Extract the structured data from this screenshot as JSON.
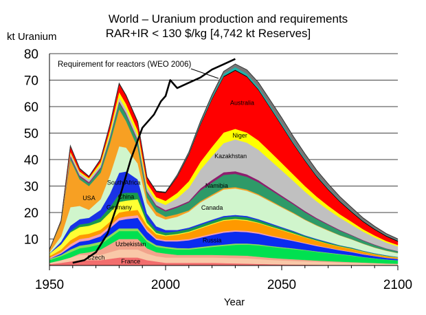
{
  "chart_data": {
    "type": "area",
    "stacked": true,
    "title": "World – Uranium production and requirements",
    "subtitle": "RAR+IR < 130 $/kg [4,742 kt Reserves]",
    "ylabel": "kt Uranium",
    "xlabel": "Year",
    "xlim": [
      1950,
      2100
    ],
    "ylim": [
      0,
      80
    ],
    "xticks": [
      "1950",
      "2000",
      "2050",
      "2100"
    ],
    "yticks": [
      "10",
      "20",
      "30",
      "40",
      "50",
      "60",
      "70",
      "80"
    ],
    "grid": "horizontal",
    "x": [
      1950,
      1955,
      1959,
      1963,
      1967,
      1972,
      1976,
      1980,
      1983,
      1988,
      1992,
      1996,
      2000,
      2005,
      2010,
      2015,
      2020,
      2025,
      2030,
      2035,
      2040,
      2045,
      2050,
      2055,
      2060,
      2065,
      2070,
      2075,
      2080,
      2085,
      2090,
      2095,
      2100
    ],
    "series": [
      {
        "name": "France",
        "color": "#f26d6d",
        "values": [
          0.5,
          1,
          1.5,
          2,
          2,
          2,
          2.5,
          3,
          3,
          3,
          2,
          1.5,
          1,
          1,
          1,
          1,
          1,
          0.9,
          0.8,
          0.7,
          0.6,
          0.5,
          0.4,
          0.35,
          0.3,
          0.25,
          0.2,
          0.15,
          0.12,
          0.1,
          0.08,
          0.06,
          0.05
        ]
      },
      {
        "name": "Czech",
        "color": "#f9c8a8",
        "values": [
          0.5,
          1,
          1.5,
          2,
          2,
          2,
          2.5,
          3,
          3,
          3,
          2.5,
          2,
          2,
          2,
          2,
          2,
          2,
          2,
          2,
          2,
          1.8,
          1.6,
          1.5,
          1.4,
          1.3,
          1.2,
          1.1,
          1,
          0.9,
          0.8,
          0.7,
          0.6,
          0.5
        ]
      },
      {
        "name": "Uzbekistan",
        "color": "#f2a48c",
        "values": [
          0,
          0,
          0,
          0.5,
          1,
          2,
          3,
          4,
          4,
          4,
          2,
          1.5,
          1.5,
          1,
          1,
          1,
          1,
          1,
          1,
          1,
          0.9,
          0.8,
          0.7,
          0.6,
          0.5,
          0.4,
          0.35,
          0.3,
          0.25,
          0.2,
          0.15,
          0.1,
          0.1
        ]
      },
      {
        "name": "",
        "color": "#00e050",
        "values": [
          1,
          1.5,
          2,
          2,
          2,
          2,
          2.5,
          3,
          3,
          3,
          2.5,
          2,
          2,
          2,
          2,
          2.5,
          3,
          3.5,
          4,
          4.2,
          4.3,
          4.2,
          4,
          3.8,
          3.6,
          3.3,
          3,
          2.7,
          2.4,
          2,
          1.7,
          1.4,
          1.2
        ]
      },
      {
        "name": "",
        "color": "#8fdc5a",
        "values": [
          0.5,
          0.5,
          1,
          1,
          1,
          1,
          1,
          1,
          1,
          1,
          0.8,
          0.7,
          0.6,
          0.6,
          0.5,
          0.5,
          0.5,
          0.5,
          0.5,
          0.4,
          0.4,
          0.3,
          0.3,
          0.3,
          0.2,
          0.2,
          0.2,
          0.2,
          0.2,
          0.1,
          0.1,
          0.1,
          0.1
        ]
      },
      {
        "name": "Russia",
        "color": "#0a2cf0",
        "values": [
          0,
          0.5,
          1,
          1.5,
          1.5,
          2,
          2.5,
          3,
          3.5,
          4,
          3,
          2,
          2,
          2.5,
          3,
          3.5,
          4,
          4.5,
          4.5,
          4.3,
          4,
          3.6,
          3.2,
          2.8,
          2.4,
          2,
          1.7,
          1.4,
          1.2,
          1,
          0.8,
          0.6,
          0.5
        ]
      },
      {
        "name": "",
        "color": "#f5a0b4",
        "values": [
          0.5,
          0.5,
          1,
          1,
          1,
          1,
          1,
          1,
          1,
          1,
          0.8,
          0.6,
          0.5,
          0.5,
          0.5,
          0.5,
          0.5,
          0.5,
          0.5,
          0.5,
          0.5,
          0.4,
          0.4,
          0.3,
          0.3,
          0.3,
          0.2,
          0.2,
          0.2,
          0.2,
          0.1,
          0.1,
          0.1
        ]
      },
      {
        "name": "",
        "color": "#ff9900",
        "values": [
          0.5,
          1,
          1.5,
          1.5,
          1.5,
          1.5,
          1.5,
          2,
          2,
          2,
          1.5,
          1.5,
          1.5,
          2,
          2.5,
          3,
          3.5,
          4,
          4,
          3.8,
          3.5,
          3.2,
          2.8,
          2.4,
          2,
          1.7,
          1.4,
          1.2,
          1,
          0.8,
          0.6,
          0.5,
          0.4
        ]
      },
      {
        "name": "Germany",
        "color": "#ffff33",
        "values": [
          1,
          2,
          3,
          3,
          3,
          3,
          3.5,
          4,
          4,
          4,
          1,
          0.5,
          0.3,
          0.3,
          0.3,
          0.3,
          0.3,
          0.3,
          0.3,
          0.3,
          0.2,
          0.2,
          0.2,
          0.2,
          0.1,
          0.1,
          0.1,
          0.1,
          0.1,
          0.1,
          0.1,
          0.1,
          0.1
        ]
      },
      {
        "name": "China",
        "color": "#1a9a4a",
        "values": [
          0,
          0,
          0.5,
          1,
          1,
          1.5,
          2,
          3,
          3,
          2.5,
          1.5,
          1,
          1,
          1,
          1,
          1,
          1,
          1,
          1,
          1,
          0.9,
          0.8,
          0.7,
          0.6,
          0.5,
          0.4,
          0.4,
          0.3,
          0.3,
          0.2,
          0.2,
          0.2,
          0.1
        ]
      },
      {
        "name": "South Africa",
        "color": "#1a32e6",
        "values": [
          0,
          1,
          2,
          2,
          2,
          3,
          5,
          8,
          8,
          5,
          2,
          1.5,
          1,
          0.5,
          0.5,
          0.5,
          0.5,
          0.5,
          0.5,
          0.5,
          0.4,
          0.4,
          0.3,
          0.3,
          0.2,
          0.2,
          0.2,
          0.1,
          0.1,
          0.1,
          0.1,
          0.1,
          0.1
        ]
      },
      {
        "name": "Canada",
        "color": "#d0f5cc",
        "values": [
          0.5,
          2,
          7,
          5,
          3,
          4,
          7,
          10,
          9,
          6,
          4,
          4,
          4,
          5,
          6,
          8,
          9,
          10,
          10,
          9.5,
          9,
          8.2,
          7.4,
          6.6,
          5.8,
          5,
          4.3,
          3.7,
          3.1,
          2.6,
          2.1,
          1.7,
          1.4
        ]
      },
      {
        "name": "USA",
        "color": "#f7a023",
        "values": [
          1,
          5,
          18,
          10,
          9,
          10,
          12,
          14,
          10,
          6,
          2,
          1.5,
          1,
          1,
          0.5,
          0.5,
          0.5,
          0.5,
          0.5,
          0.5,
          0.4,
          0.4,
          0.3,
          0.3,
          0.2,
          0.2,
          0.2,
          0.1,
          0.1,
          0.1,
          0.1,
          0.1,
          0.1
        ]
      },
      {
        "name": "Namibia",
        "color": "#2e9a68",
        "values": [
          0,
          0.5,
          1,
          1,
          1,
          1.5,
          2,
          2.5,
          2.5,
          2.5,
          2,
          2,
          2,
          2.5,
          3,
          4,
          4.5,
          5,
          5,
          4.8,
          4.5,
          4,
          3.6,
          3.1,
          2.7,
          2.3,
          2,
          1.7,
          1.4,
          1.1,
          0.9,
          0.7,
          0.6
        ]
      },
      {
        "name": "",
        "color": "#8e1e6e",
        "values": [
          0,
          0,
          0.5,
          0.5,
          0.5,
          0.5,
          0.5,
          0.5,
          0.5,
          0.5,
          0.5,
          0.5,
          0.5,
          0.5,
          0.5,
          0.8,
          1,
          1,
          1,
          0.9,
          0.8,
          0.7,
          0.6,
          0.5,
          0.5,
          0.4,
          0.3,
          0.3,
          0.2,
          0.2,
          0.2,
          0.1,
          0.1
        ]
      },
      {
        "name": "Kazakhstan",
        "color": "#c0c0c0",
        "values": [
          0,
          0,
          1,
          1,
          1,
          1,
          1,
          1.5,
          1.5,
          1.5,
          1.5,
          1.5,
          2,
          3,
          5,
          7,
          9,
          11,
          12,
          12,
          11.5,
          10.5,
          9.5,
          8.4,
          7.3,
          6.3,
          5.4,
          4.6,
          3.9,
          3.2,
          2.7,
          2.2,
          1.8
        ]
      },
      {
        "name": "Niger",
        "color": "#ffff00",
        "values": [
          0,
          0,
          0.5,
          0.5,
          0.5,
          1,
          1.5,
          2,
          2,
          2,
          1.5,
          1.5,
          1.5,
          2,
          2.5,
          3,
          3.5,
          4,
          4,
          3.8,
          3.5,
          3.2,
          2.8,
          2.4,
          2.1,
          1.8,
          1.5,
          1.3,
          1.1,
          0.9,
          0.7,
          0.6,
          0.5
        ]
      },
      {
        "name": "Australia",
        "color": "#ff0000",
        "values": [
          0,
          0.5,
          2,
          1,
          0.5,
          1,
          2,
          3,
          3,
          3,
          2,
          2,
          3,
          6,
          10,
          14,
          18,
          21,
          22,
          21,
          19,
          16.5,
          14,
          11.5,
          9.5,
          7.5,
          6,
          4.7,
          3.6,
          2.8,
          2.2,
          1.7,
          1.3
        ]
      },
      {
        "name": "",
        "color": "#000000",
        "values": [
          0,
          0,
          0.2,
          0.2,
          0.2,
          0.2,
          0.2,
          0.3,
          0.3,
          0.3,
          0.3,
          0.3,
          0.3,
          0.3,
          0.3,
          0.3,
          0.3,
          0.3,
          0.3,
          0.3,
          0.3,
          0.3,
          0.3,
          0.3,
          0.3,
          0.3,
          0.3,
          0.3,
          0.3,
          0.3,
          0.3,
          0.3,
          0.3
        ]
      },
      {
        "name": "",
        "color": "#20b2aa",
        "values": [
          0,
          0,
          0,
          0,
          0,
          0,
          0,
          0,
          0,
          0,
          0,
          0,
          0,
          0,
          0.2,
          0.4,
          0.6,
          0.8,
          1,
          0.9,
          0.8,
          0.7,
          0.6,
          0.5,
          0.4,
          0.3,
          0.3,
          0.2,
          0.2,
          0.1,
          0.1,
          0.1,
          0.1
        ]
      },
      {
        "name": "",
        "color": "#777777",
        "values": [
          0,
          0,
          0,
          0,
          0,
          0,
          0,
          0,
          0,
          0,
          0,
          0,
          0,
          0.5,
          0.5,
          0.6,
          0.8,
          1,
          1.2,
          1.5,
          1.8,
          2,
          2.2,
          2.1,
          2,
          1.9,
          1.7,
          1.5,
          1.3,
          1.1,
          0.9,
          0.7,
          0.6
        ]
      }
    ],
    "requirement_line": {
      "name": "Requirement for reactors (WEO 2006)",
      "color": "#000000",
      "x": [
        1960,
        1965,
        1970,
        1975,
        1980,
        1985,
        1990,
        1995,
        1998,
        2000,
        2002,
        2005,
        2010,
        2015,
        2020,
        2025,
        2030
      ],
      "y": [
        1,
        2,
        5,
        12,
        25,
        40,
        52,
        57,
        62,
        64,
        70,
        67,
        69,
        71,
        74,
        76,
        78
      ]
    }
  }
}
